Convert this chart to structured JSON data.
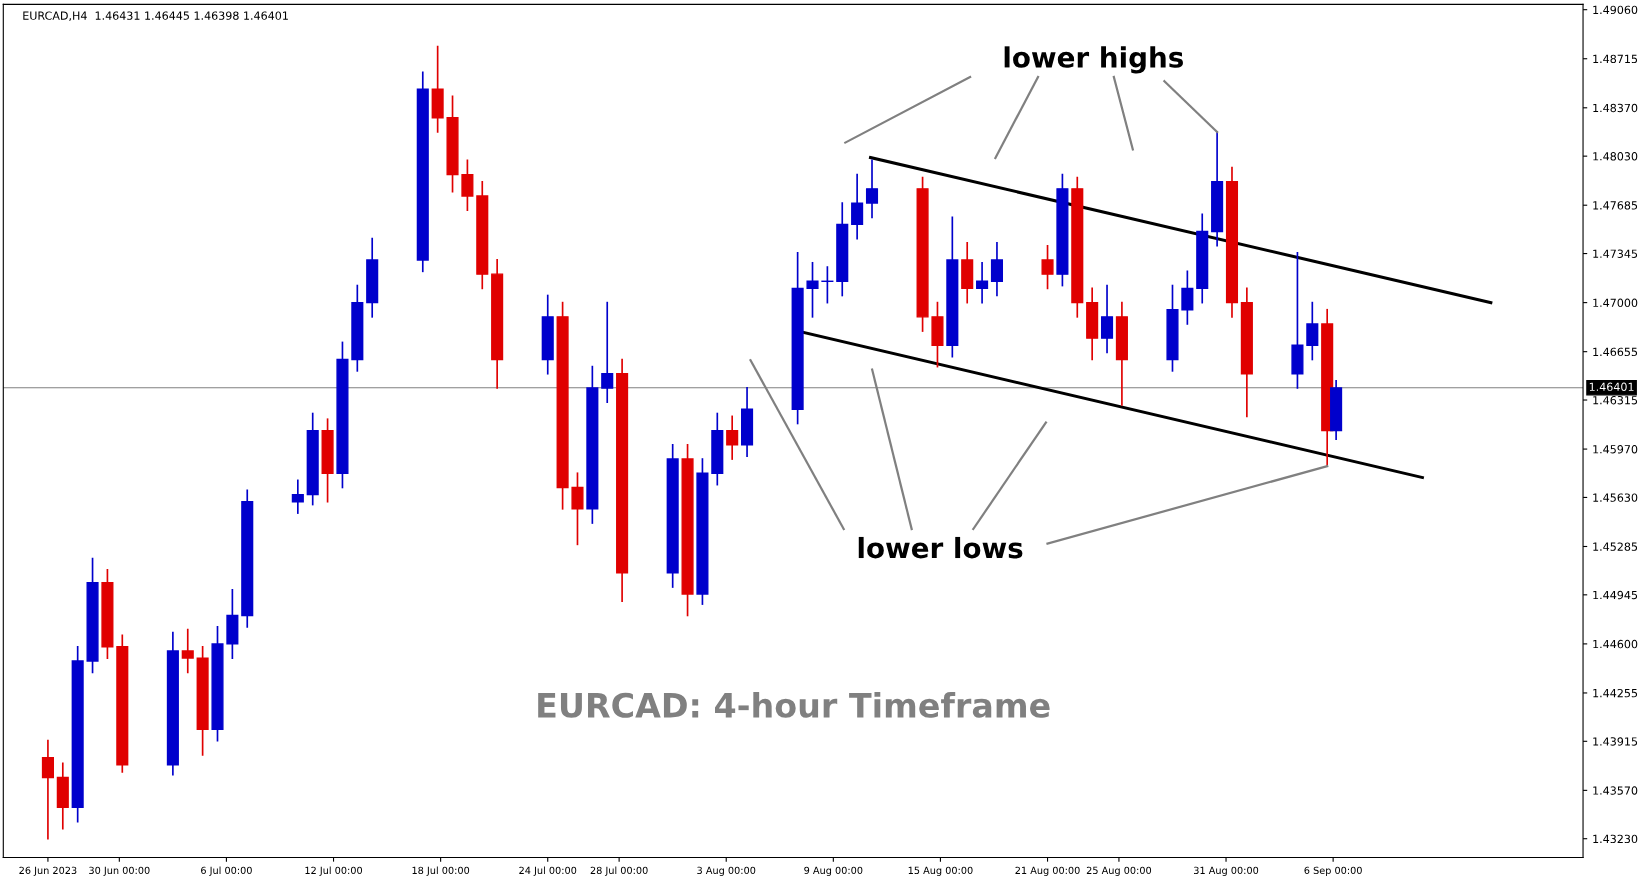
{
  "chart_data": {
    "type": "candlestick",
    "title": "EURCAD,H4  1.46431 1.46445 1.46398 1.46401",
    "x": [
      "2023-06-26T00:00",
      "2023-06-26T20:00",
      "2023-06-27T16:00",
      "2023-06-28T12:00",
      "2023-06-29T08:00",
      "2023-06-30T04:00",
      "2023-07-03T00:00",
      "2023-07-03T20:00",
      "2023-07-04T16:00",
      "2023-07-05T12:00",
      "2023-07-06T08:00",
      "2023-07-07T04:00",
      "2023-07-10T00:00",
      "2023-07-10T20:00",
      "2023-07-11T16:00",
      "2023-07-12T12:00",
      "2023-07-13T08:00",
      "2023-07-14T04:00",
      "2023-07-17T00:00",
      "2023-07-17T20:00",
      "2023-07-18T16:00",
      "2023-07-19T12:00",
      "2023-07-20T08:00",
      "2023-07-21T04:00",
      "2023-07-24T00:00",
      "2023-07-24T20:00",
      "2023-07-25T16:00",
      "2023-07-26T12:00",
      "2023-07-27T08:00",
      "2023-07-28T04:00",
      "2023-07-31T00:00",
      "2023-07-31T20:00",
      "2023-08-01T16:00",
      "2023-08-02T12:00",
      "2023-08-03T08:00",
      "2023-08-04T04:00",
      "2023-08-07T00:00",
      "2023-08-07T20:00",
      "2023-08-08T16:00",
      "2023-08-09T12:00",
      "2023-08-10T08:00",
      "2023-08-11T04:00",
      "2023-08-14T00:00",
      "2023-08-14T20:00",
      "2023-08-15T16:00",
      "2023-08-16T12:00",
      "2023-08-17T08:00",
      "2023-08-18T04:00",
      "2023-08-21T00:00",
      "2023-08-21T20:00",
      "2023-08-22T16:00",
      "2023-08-23T12:00",
      "2023-08-24T08:00",
      "2023-08-25T04:00",
      "2023-08-28T00:00",
      "2023-08-28T20:00",
      "2023-08-29T16:00",
      "2023-08-30T12:00",
      "2023-08-31T08:00",
      "2023-09-01T04:00",
      "2023-09-04T00:00",
      "2023-09-04T20:00",
      "2023-09-05T16:00",
      "2023-09-06T04:00"
    ],
    "ohlc": [
      [
        1.438,
        1.4392,
        1.4323,
        1.4366
      ],
      [
        1.4366,
        1.4376,
        1.433,
        1.4345
      ],
      [
        1.4345,
        1.4458,
        1.4335,
        1.4448
      ],
      [
        1.4448,
        1.452,
        1.444,
        1.4503
      ],
      [
        1.4503,
        1.4512,
        1.445,
        1.4458
      ],
      [
        1.4458,
        1.4466,
        1.437,
        1.4375
      ],
      [
        1.4375,
        1.4468,
        1.4368,
        1.4455
      ],
      [
        1.4455,
        1.447,
        1.444,
        1.445
      ],
      [
        1.445,
        1.4458,
        1.4382,
        1.44
      ],
      [
        1.44,
        1.4472,
        1.4392,
        1.446
      ],
      [
        1.446,
        1.4498,
        1.445,
        1.448
      ],
      [
        1.448,
        1.4568,
        1.4472,
        1.456
      ],
      [
        1.456,
        1.4575,
        1.4552,
        1.4565
      ],
      [
        1.4565,
        1.4622,
        1.4558,
        1.461
      ],
      [
        1.461,
        1.4618,
        1.456,
        1.458
      ],
      [
        1.458,
        1.4672,
        1.457,
        1.466
      ],
      [
        1.466,
        1.4712,
        1.4652,
        1.47
      ],
      [
        1.47,
        1.4745,
        1.469,
        1.473
      ],
      [
        1.473,
        1.4862,
        1.4722,
        1.485
      ],
      [
        1.485,
        1.488,
        1.482,
        1.483
      ],
      [
        1.483,
        1.4845,
        1.4778,
        1.479
      ],
      [
        1.479,
        1.48,
        1.4765,
        1.4775
      ],
      [
        1.4775,
        1.4785,
        1.471,
        1.472
      ],
      [
        1.472,
        1.473,
        1.464,
        1.466
      ],
      [
        1.466,
        1.4705,
        1.465,
        1.469
      ],
      [
        1.469,
        1.47,
        1.4555,
        1.457
      ],
      [
        1.457,
        1.458,
        1.453,
        1.4555
      ],
      [
        1.4555,
        1.4655,
        1.4545,
        1.464
      ],
      [
        1.464,
        1.47,
        1.463,
        1.465
      ],
      [
        1.465,
        1.466,
        1.449,
        1.451
      ],
      [
        1.451,
        1.46,
        1.45,
        1.459
      ],
      [
        1.459,
        1.46,
        1.448,
        1.4495
      ],
      [
        1.4495,
        1.459,
        1.4488,
        1.458
      ],
      [
        1.458,
        1.4622,
        1.4572,
        1.461
      ],
      [
        1.461,
        1.462,
        1.459,
        1.46
      ],
      [
        1.46,
        1.464,
        1.4592,
        1.4625
      ],
      [
        1.4625,
        1.4735,
        1.4615,
        1.471
      ],
      [
        1.471,
        1.4728,
        1.469,
        1.4715
      ],
      [
        1.4715,
        1.4725,
        1.47,
        1.4715
      ],
      [
        1.4715,
        1.477,
        1.4705,
        1.4755
      ],
      [
        1.4755,
        1.479,
        1.4745,
        1.477
      ],
      [
        1.477,
        1.48,
        1.476,
        1.478
      ],
      [
        1.478,
        1.4788,
        1.468,
        1.469
      ],
      [
        1.469,
        1.47,
        1.4655,
        1.467
      ],
      [
        1.467,
        1.476,
        1.4662,
        1.473
      ],
      [
        1.473,
        1.4742,
        1.47,
        1.471
      ],
      [
        1.471,
        1.4728,
        1.47,
        1.4715
      ],
      [
        1.4715,
        1.4742,
        1.4705,
        1.473
      ],
      [
        1.473,
        1.474,
        1.471,
        1.472
      ],
      [
        1.472,
        1.479,
        1.4712,
        1.478
      ],
      [
        1.478,
        1.4788,
        1.469,
        1.47
      ],
      [
        1.47,
        1.471,
        1.466,
        1.4675
      ],
      [
        1.4675,
        1.4712,
        1.4665,
        1.469
      ],
      [
        1.469,
        1.47,
        1.4628,
        1.466
      ],
      [
        1.466,
        1.4712,
        1.4652,
        1.4695
      ],
      [
        1.4695,
        1.4722,
        1.4685,
        1.471
      ],
      [
        1.471,
        1.4762,
        1.47,
        1.475
      ],
      [
        1.475,
        1.482,
        1.474,
        1.4785
      ],
      [
        1.4785,
        1.4795,
        1.469,
        1.47
      ],
      [
        1.47,
        1.471,
        1.462,
        1.465
      ],
      [
        1.465,
        1.4735,
        1.464,
        1.467
      ],
      [
        1.467,
        1.47,
        1.466,
        1.4685
      ],
      [
        1.4685,
        1.4695,
        1.4585,
        1.461
      ],
      [
        1.461,
        1.4645,
        1.4604,
        1.464
      ]
    ],
    "colors": [
      "#e00000",
      "#e00000",
      "#0000cc",
      "#0000cc",
      "#e00000",
      "#e00000",
      "#0000cc",
      "#e00000",
      "#e00000",
      "#0000cc",
      "#0000cc",
      "#0000cc",
      "#0000cc",
      "#0000cc",
      "#e00000",
      "#0000cc",
      "#0000cc",
      "#0000cc",
      "#0000cc",
      "#e00000",
      "#e00000",
      "#e00000",
      "#e00000",
      "#e00000",
      "#0000cc",
      "#e00000",
      "#e00000",
      "#0000cc",
      "#0000cc",
      "#e00000",
      "#0000cc",
      "#e00000",
      "#0000cc",
      "#0000cc",
      "#e00000",
      "#0000cc",
      "#0000cc",
      "#0000cc",
      "#0000cc",
      "#0000cc",
      "#0000cc",
      "#0000cc",
      "#e00000",
      "#e00000",
      "#0000cc",
      "#e00000",
      "#0000cc",
      "#0000cc",
      "#e00000",
      "#0000cc",
      "#e00000",
      "#e00000",
      "#0000cc",
      "#e00000",
      "#0000cc",
      "#0000cc",
      "#0000cc",
      "#0000cc",
      "#e00000",
      "#e00000",
      "#0000cc",
      "#0000cc",
      "#e00000",
      "#0000cc"
    ],
    "series": [
      {
        "type": "line",
        "color": "#000000",
        "x": [
          "2023-08-11T02:00",
          "2023-09-14T20:00"
        ],
        "values": [
          1.4802,
          1.47
        ]
      },
      {
        "type": "line",
        "color": "#000000",
        "x": [
          "2023-08-07T08:00",
          "2023-09-11T00:00"
        ],
        "values": [
          1.4679,
          1.4577
        ]
      }
    ],
    "annotations": [
      {
        "text": "lower highs",
        "x": "2023-08-30T12:00",
        "y": 1.482
      },
      {
        "text": "lower lows",
        "x": "2023-09-05T16:00",
        "y": 1.4585
      },
      "EURCAD: 4-hour Timeframe"
    ],
    "ref_lines": [
      {
        "axis": "y",
        "value": 1.46401,
        "label": "1.46401",
        "color": "#808080"
      }
    ],
    "xlim": [
      "2023-06-23T12:00",
      "2023-09-20T00:00"
    ],
    "xticks": [
      {
        "value": "2023-06-26",
        "label": "26 Jun 2023"
      },
      {
        "value": "2023-06-30",
        "label": "30 Jun 00:00"
      },
      {
        "value": "2023-07-06",
        "label": "6 Jul 00:00"
      },
      {
        "value": "2023-07-12",
        "label": "12 Jul 00:00"
      },
      {
        "value": "2023-07-18",
        "label": "18 Jul 00:00"
      },
      {
        "value": "2023-07-24",
        "label": "24 Jul 00:00"
      },
      {
        "value": "2023-07-28",
        "label": "28 Jul 00:00"
      },
      {
        "value": "2023-08-03",
        "label": "3 Aug 00:00"
      },
      {
        "value": "2023-08-09",
        "label": "9 Aug 00:00"
      },
      {
        "value": "2023-08-15",
        "label": "15 Aug 00:00"
      },
      {
        "value": "2023-08-21",
        "label": "21 Aug 00:00"
      },
      {
        "value": "2023-08-25",
        "label": "25 Aug 00:00"
      },
      {
        "value": "2023-08-31",
        "label": "31 Aug 00:00"
      },
      {
        "value": "2023-09-06",
        "label": "6 Sep 00:00"
      }
    ],
    "ylim": [
      1.43098,
      1.49097
    ],
    "yticks": [
      {
        "value": 1.4906,
        "label": "1.49060"
      },
      {
        "value": 1.48715,
        "label": "1.48715"
      },
      {
        "value": 1.4837,
        "label": "1.48370"
      },
      {
        "value": 1.4803,
        "label": "1.48030"
      },
      {
        "value": 1.47685,
        "label": "1.47685"
      },
      {
        "value": 1.47345,
        "label": "1.47345"
      },
      {
        "value": 1.47,
        "label": "1.47000"
      },
      {
        "value": 1.46655,
        "label": "1.46655"
      },
      {
        "value": 1.46315,
        "label": "1.46315"
      },
      {
        "value": 1.4597,
        "label": "1.45970"
      },
      {
        "value": 1.4563,
        "label": "1.45630"
      },
      {
        "value": 1.45285,
        "label": "1.45285"
      },
      {
        "value": 1.44945,
        "label": "1.44945"
      },
      {
        "value": 1.446,
        "label": "1.44600"
      },
      {
        "value": 1.44255,
        "label": "1.44255"
      },
      {
        "value": 1.43915,
        "label": "1.43915"
      },
      {
        "value": 1.4357,
        "label": "1.43570"
      },
      {
        "value": 1.4323,
        "label": "1.43230"
      }
    ],
    "grid": false,
    "legend": false
  }
}
